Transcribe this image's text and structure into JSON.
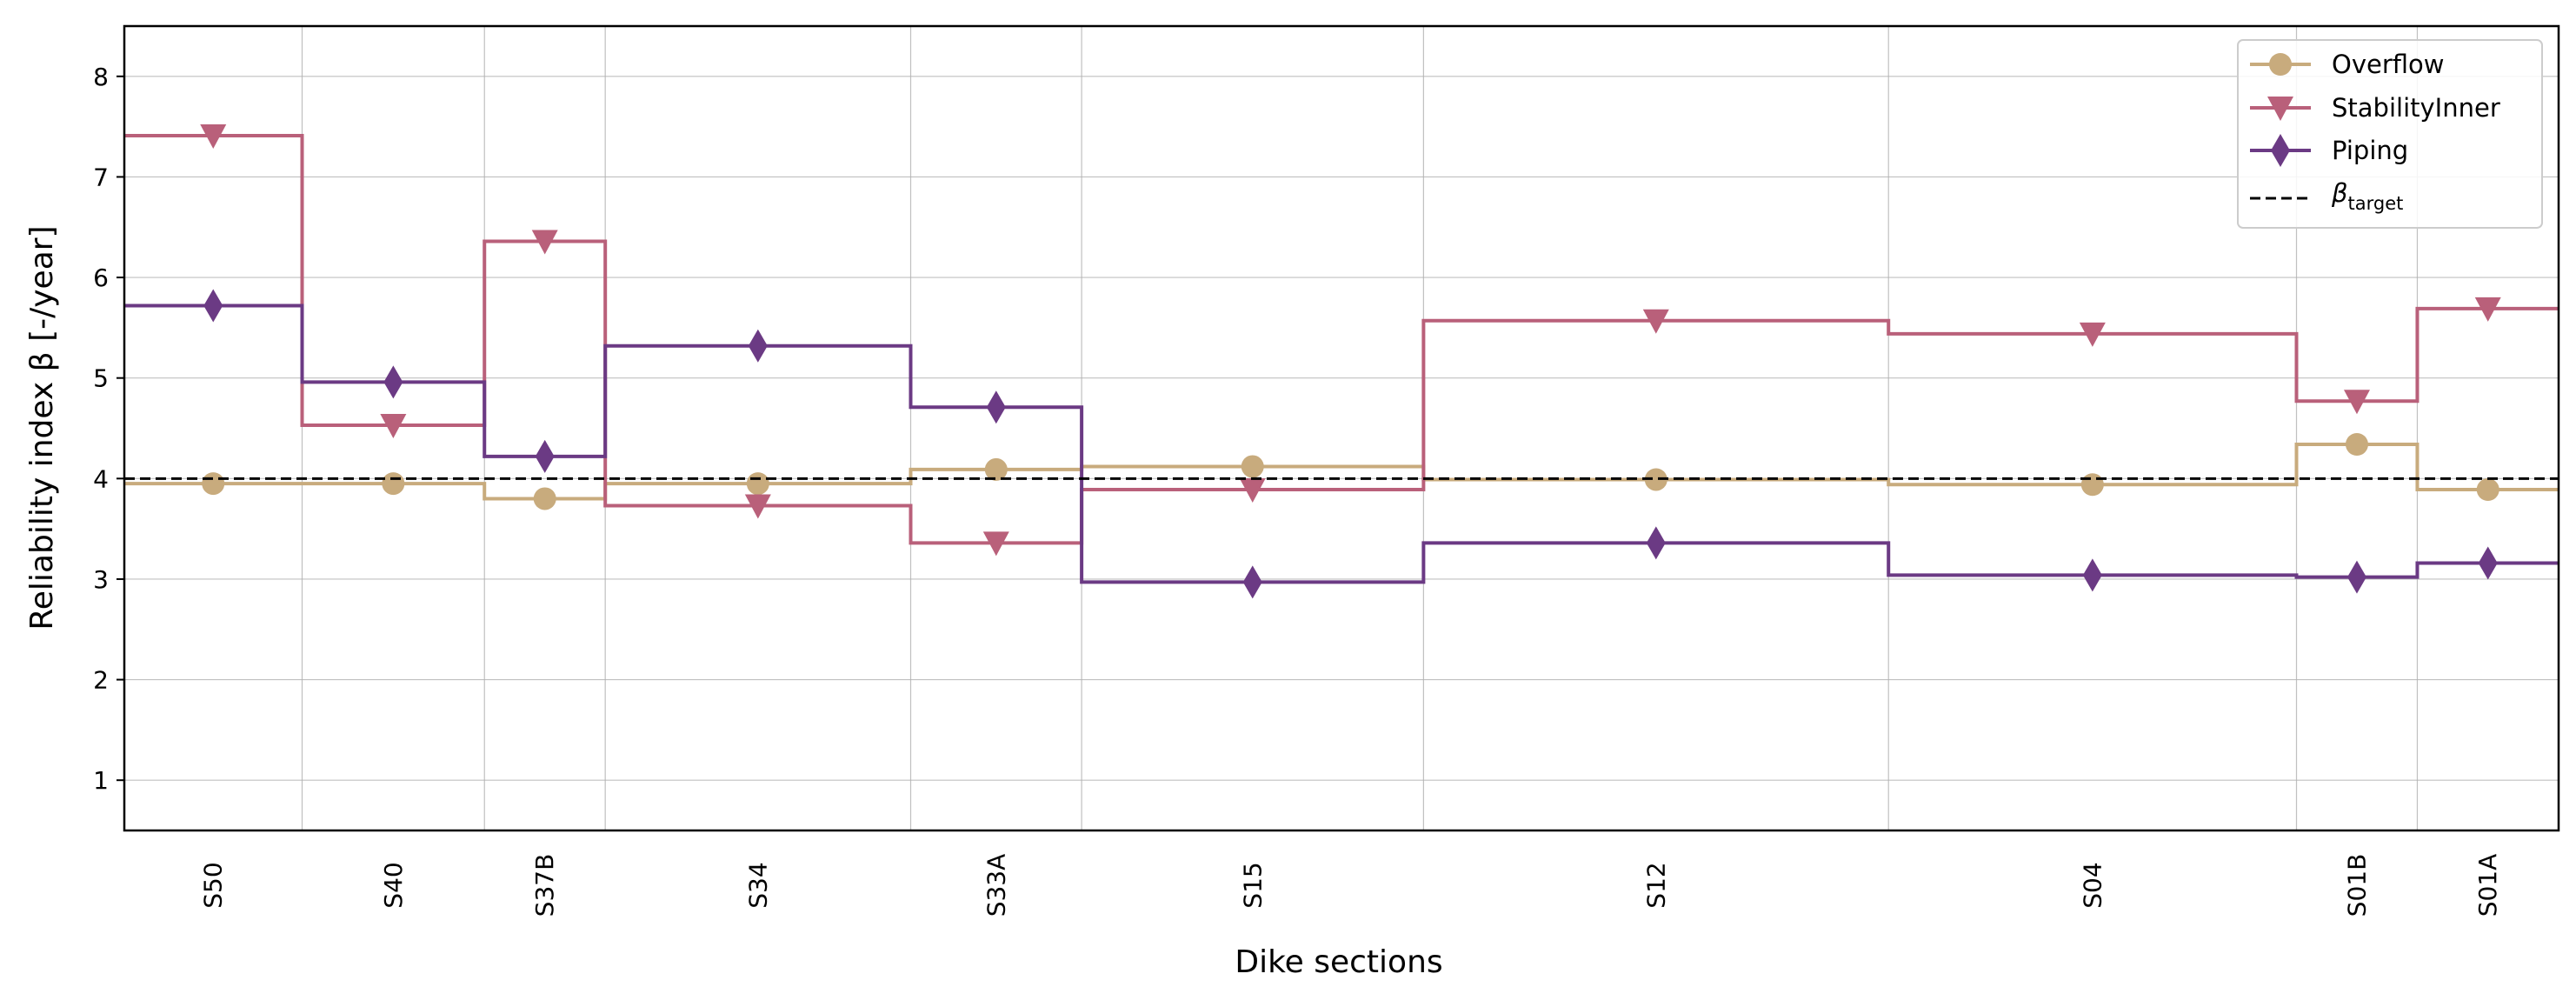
{
  "chart_data": {
    "type": "line",
    "step": true,
    "xlabel": "Dike sections",
    "ylabel": "Reliability index β [-/year]",
    "ylim": [
      0.5,
      8.5
    ],
    "yticks": [
      1,
      2,
      3,
      4,
      5,
      6,
      7,
      8
    ],
    "grid": true,
    "legend_position": "top-right",
    "section_boundaries": [
      0,
      390,
      790,
      1055,
      1725,
      2100,
      2850,
      3870,
      4765,
      5030,
      5340
    ],
    "sections": [
      "S50",
      "S40",
      "S37B",
      "S34",
      "S33A",
      "S15",
      "S12",
      "S04",
      "S01B",
      "S01A"
    ],
    "series": [
      {
        "name": "Overflow",
        "color": "#c8ab7d",
        "marker": "circle",
        "values": [
          3.95,
          3.95,
          3.8,
          3.95,
          4.09,
          4.12,
          3.99,
          3.94,
          4.34,
          3.89
        ]
      },
      {
        "name": "StabilityInner",
        "color": "#b9607a",
        "marker": "triangle-down",
        "values": [
          7.41,
          4.53,
          6.36,
          3.73,
          3.36,
          3.89,
          5.57,
          5.44,
          4.77,
          5.69
        ]
      },
      {
        "name": "Piping",
        "color": "#6b3a84",
        "marker": "diamond",
        "values": [
          5.72,
          4.96,
          4.22,
          5.32,
          4.71,
          2.97,
          3.36,
          3.04,
          3.02,
          3.16
        ]
      }
    ],
    "reference_line": {
      "label_main": "β",
      "label_sub": "target",
      "value": 4.0,
      "color": "#000000",
      "style": "dashed"
    }
  }
}
